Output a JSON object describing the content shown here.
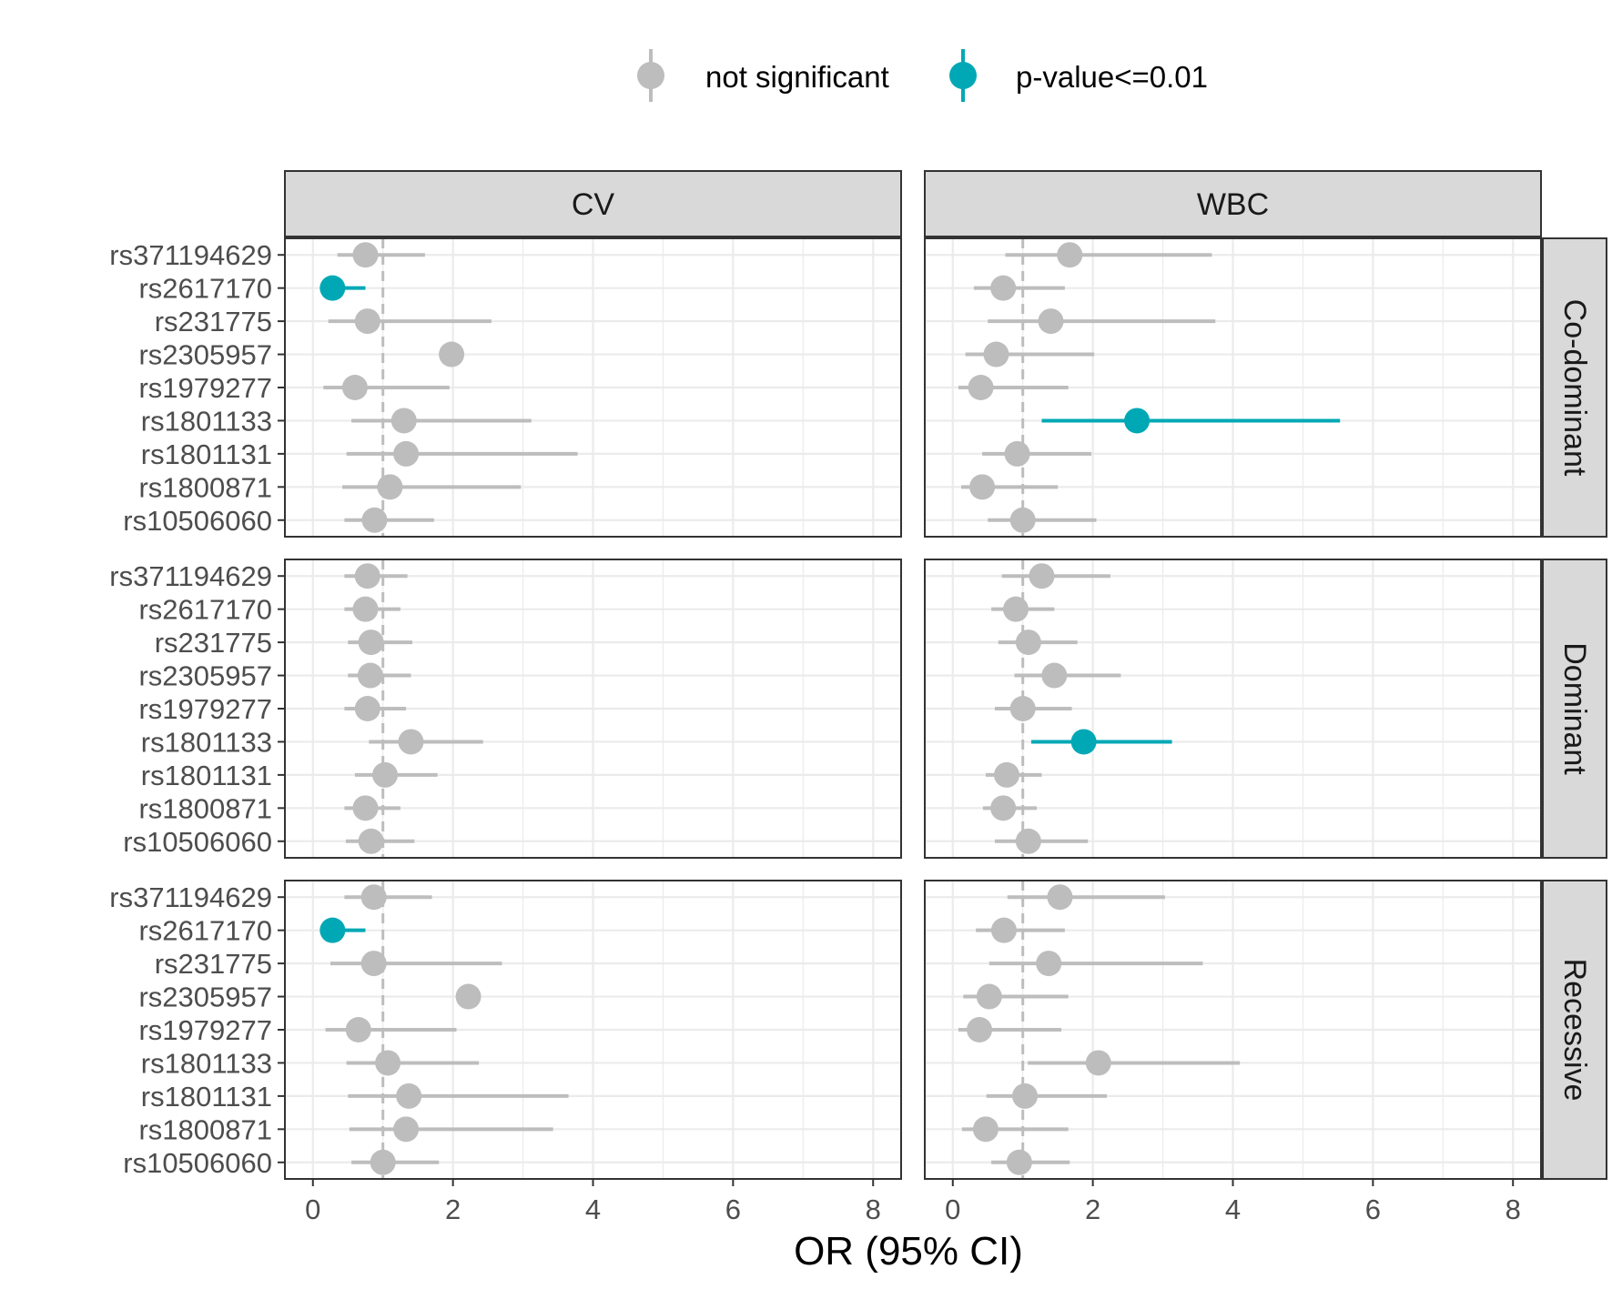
{
  "chart_data": {
    "type": "forest",
    "xlabel": "OR (95% CI)",
    "xlim": [
      -0.4,
      8.4
    ],
    "xticks": [
      0,
      2,
      4,
      6,
      8
    ],
    "reference_line": 1,
    "grid": true,
    "legend_position": "top",
    "colors": {
      "not_significant": "#bdbdbd",
      "significant": "#00a8b5"
    },
    "legend": [
      {
        "key": "not_significant",
        "label": "not significant"
      },
      {
        "key": "significant",
        "label": "p-value<=0.01"
      }
    ],
    "columns": [
      "CV",
      "WBC"
    ],
    "rows": [
      "Co-dominant",
      "Dominant",
      "Recessive"
    ],
    "snps": [
      "rs371194629",
      "rs2617170",
      "rs231775",
      "rs2305957",
      "rs1979277",
      "rs1801133",
      "rs1801131",
      "rs1800871",
      "rs10506060"
    ],
    "panels": [
      {
        "column": "CV",
        "row": "Co-dominant",
        "estimates": [
          {
            "snp": "rs371194629",
            "or": 0.75,
            "lo": 0.35,
            "hi": 1.6,
            "sig": false
          },
          {
            "snp": "rs2617170",
            "or": 0.28,
            "lo": 0.2,
            "hi": 0.75,
            "sig": true
          },
          {
            "snp": "rs231775",
            "or": 0.78,
            "lo": 0.22,
            "hi": 2.55,
            "sig": false
          },
          {
            "snp": "rs2305957",
            "or": 1.98,
            "lo": 1.98,
            "hi": 1.98,
            "sig": false
          },
          {
            "snp": "rs1979277",
            "or": 0.6,
            "lo": 0.15,
            "hi": 1.95,
            "sig": false
          },
          {
            "snp": "rs1801133",
            "or": 1.3,
            "lo": 0.55,
            "hi": 3.12,
            "sig": false
          },
          {
            "snp": "rs1801131",
            "or": 1.33,
            "lo": 0.48,
            "hi": 3.78,
            "sig": false
          },
          {
            "snp": "rs1800871",
            "or": 1.1,
            "lo": 0.42,
            "hi": 2.97,
            "sig": false
          },
          {
            "snp": "rs10506060",
            "or": 0.88,
            "lo": 0.45,
            "hi": 1.73,
            "sig": false
          }
        ]
      },
      {
        "column": "WBC",
        "row": "Co-dominant",
        "estimates": [
          {
            "snp": "rs371194629",
            "or": 1.67,
            "lo": 0.75,
            "hi": 3.7,
            "sig": false
          },
          {
            "snp": "rs2617170",
            "or": 0.72,
            "lo": 0.3,
            "hi": 1.6,
            "sig": false
          },
          {
            "snp": "rs231775",
            "or": 1.4,
            "lo": 0.5,
            "hi": 3.75,
            "sig": false
          },
          {
            "snp": "rs2305957",
            "or": 0.62,
            "lo": 0.18,
            "hi": 2.02,
            "sig": false
          },
          {
            "snp": "rs1979277",
            "or": 0.4,
            "lo": 0.08,
            "hi": 1.65,
            "sig": false
          },
          {
            "snp": "rs1801133",
            "or": 2.63,
            "lo": 1.27,
            "hi": 5.53,
            "sig": true
          },
          {
            "snp": "rs1801131",
            "or": 0.92,
            "lo": 0.42,
            "hi": 1.98,
            "sig": false
          },
          {
            "snp": "rs1800871",
            "or": 0.42,
            "lo": 0.12,
            "hi": 1.5,
            "sig": false
          },
          {
            "snp": "rs10506060",
            "or": 1.0,
            "lo": 0.5,
            "hi": 2.05,
            "sig": false
          }
        ]
      },
      {
        "column": "CV",
        "row": "Dominant",
        "estimates": [
          {
            "snp": "rs371194629",
            "or": 0.78,
            "lo": 0.45,
            "hi": 1.35,
            "sig": false
          },
          {
            "snp": "rs2617170",
            "or": 0.75,
            "lo": 0.45,
            "hi": 1.25,
            "sig": false
          },
          {
            "snp": "rs231775",
            "or": 0.83,
            "lo": 0.5,
            "hi": 1.42,
            "sig": false
          },
          {
            "snp": "rs2305957",
            "or": 0.82,
            "lo": 0.5,
            "hi": 1.4,
            "sig": false
          },
          {
            "snp": "rs1979277",
            "or": 0.78,
            "lo": 0.45,
            "hi": 1.33,
            "sig": false
          },
          {
            "snp": "rs1801133",
            "or": 1.4,
            "lo": 0.8,
            "hi": 2.43,
            "sig": false
          },
          {
            "snp": "rs1801131",
            "or": 1.03,
            "lo": 0.6,
            "hi": 1.78,
            "sig": false
          },
          {
            "snp": "rs1800871",
            "or": 0.75,
            "lo": 0.45,
            "hi": 1.25,
            "sig": false
          },
          {
            "snp": "rs10506060",
            "or": 0.83,
            "lo": 0.47,
            "hi": 1.45,
            "sig": false
          }
        ]
      },
      {
        "column": "WBC",
        "row": "Dominant",
        "estimates": [
          {
            "snp": "rs371194629",
            "or": 1.27,
            "lo": 0.7,
            "hi": 2.25,
            "sig": false
          },
          {
            "snp": "rs2617170",
            "or": 0.9,
            "lo": 0.55,
            "hi": 1.45,
            "sig": false
          },
          {
            "snp": "rs231775",
            "or": 1.08,
            "lo": 0.65,
            "hi": 1.78,
            "sig": false
          },
          {
            "snp": "rs2305957",
            "or": 1.45,
            "lo": 0.88,
            "hi": 2.4,
            "sig": false
          },
          {
            "snp": "rs1979277",
            "or": 1.0,
            "lo": 0.6,
            "hi": 1.7,
            "sig": false
          },
          {
            "snp": "rs1801133",
            "or": 1.87,
            "lo": 1.12,
            "hi": 3.13,
            "sig": true
          },
          {
            "snp": "rs1801131",
            "or": 0.77,
            "lo": 0.47,
            "hi": 1.27,
            "sig": false
          },
          {
            "snp": "rs1800871",
            "or": 0.72,
            "lo": 0.43,
            "hi": 1.2,
            "sig": false
          },
          {
            "snp": "rs10506060",
            "or": 1.08,
            "lo": 0.6,
            "hi": 1.93,
            "sig": false
          }
        ]
      },
      {
        "column": "CV",
        "row": "Recessive",
        "estimates": [
          {
            "snp": "rs371194629",
            "or": 0.87,
            "lo": 0.45,
            "hi": 1.7,
            "sig": false
          },
          {
            "snp": "rs2617170",
            "or": 0.28,
            "lo": 0.2,
            "hi": 0.75,
            "sig": true
          },
          {
            "snp": "rs231775",
            "or": 0.87,
            "lo": 0.25,
            "hi": 2.7,
            "sig": false
          },
          {
            "snp": "rs2305957",
            "or": 2.22,
            "lo": 2.22,
            "hi": 2.22,
            "sig": false
          },
          {
            "snp": "rs1979277",
            "or": 0.65,
            "lo": 0.18,
            "hi": 2.05,
            "sig": false
          },
          {
            "snp": "rs1801133",
            "or": 1.07,
            "lo": 0.48,
            "hi": 2.37,
            "sig": false
          },
          {
            "snp": "rs1801131",
            "or": 1.37,
            "lo": 0.5,
            "hi": 3.65,
            "sig": false
          },
          {
            "snp": "rs1800871",
            "or": 1.33,
            "lo": 0.52,
            "hi": 3.43,
            "sig": false
          },
          {
            "snp": "rs10506060",
            "or": 1.0,
            "lo": 0.55,
            "hi": 1.8,
            "sig": false
          }
        ]
      },
      {
        "column": "WBC",
        "row": "Recessive",
        "estimates": [
          {
            "snp": "rs371194629",
            "or": 1.53,
            "lo": 0.78,
            "hi": 3.03,
            "sig": false
          },
          {
            "snp": "rs2617170",
            "or": 0.73,
            "lo": 0.33,
            "hi": 1.6,
            "sig": false
          },
          {
            "snp": "rs231775",
            "or": 1.37,
            "lo": 0.52,
            "hi": 3.57,
            "sig": false
          },
          {
            "snp": "rs2305957",
            "or": 0.52,
            "lo": 0.15,
            "hi": 1.65,
            "sig": false
          },
          {
            "snp": "rs1979277",
            "or": 0.38,
            "lo": 0.08,
            "hi": 1.55,
            "sig": false
          },
          {
            "snp": "rs1801133",
            "or": 2.08,
            "lo": 1.07,
            "hi": 4.1,
            "sig": false
          },
          {
            "snp": "rs1801131",
            "or": 1.03,
            "lo": 0.48,
            "hi": 2.2,
            "sig": false
          },
          {
            "snp": "rs1800871",
            "or": 0.47,
            "lo": 0.13,
            "hi": 1.65,
            "sig": false
          },
          {
            "snp": "rs10506060",
            "or": 0.95,
            "lo": 0.55,
            "hi": 1.67,
            "sig": false
          }
        ]
      }
    ]
  }
}
